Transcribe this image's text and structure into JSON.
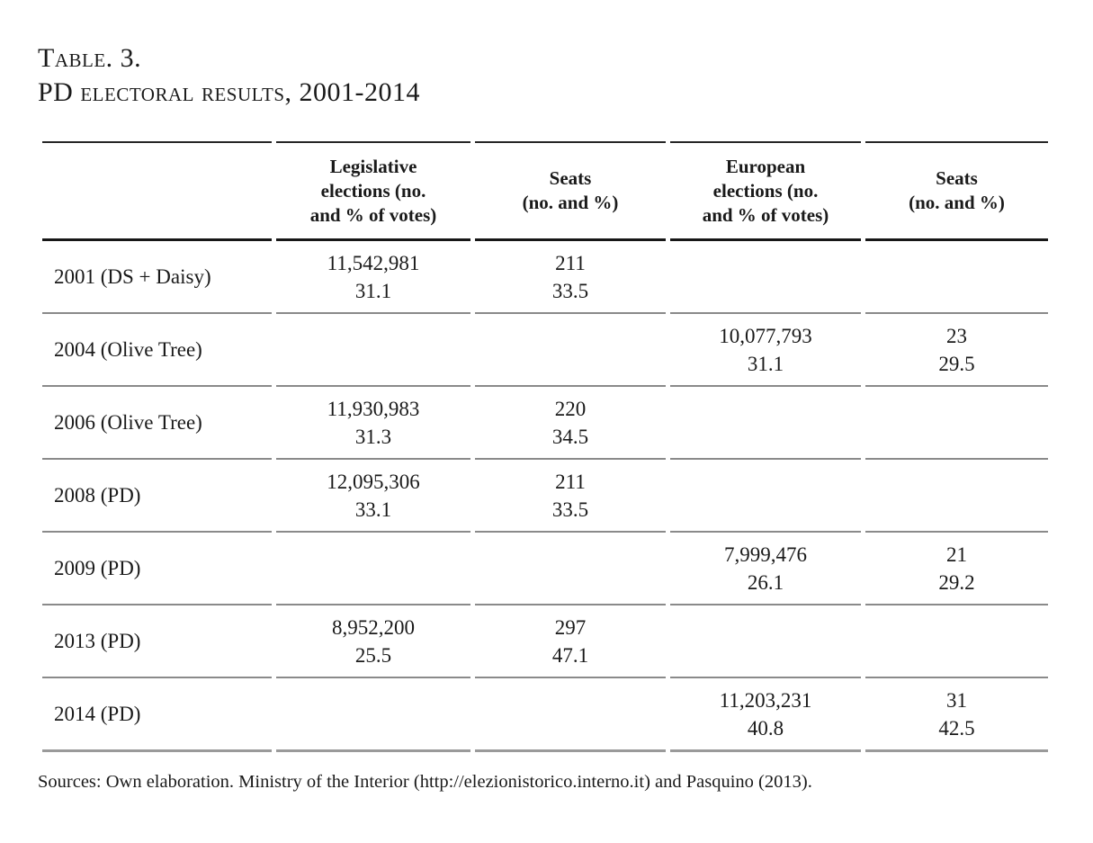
{
  "title": {
    "line1": "Table. 3.",
    "line2": "PD electoral results, 2001-2014"
  },
  "colors": {
    "background": "#ffffff",
    "text": "#1a1a1a",
    "header_rule": "#171717",
    "row_rule_gray": "#8a8a8a"
  },
  "table": {
    "columns": [
      {
        "lines": [
          "Legislative",
          "elections (no.",
          "and % of votes)"
        ]
      },
      {
        "lines": [
          "Seats",
          "(no. and %)"
        ]
      },
      {
        "lines": [
          "European",
          "elections (no.",
          "and % of votes)"
        ]
      },
      {
        "lines": [
          "Seats",
          "(no. and %)"
        ]
      }
    ],
    "rows": [
      {
        "label": "2001 (DS + Daisy)",
        "leg": {
          "votes": "11,542,981",
          "pct": "31.1"
        },
        "leg_seats": {
          "num": "211",
          "pct": "33.5"
        },
        "eu": {
          "votes": "",
          "pct": ""
        },
        "eu_seats": {
          "num": "",
          "pct": ""
        }
      },
      {
        "label": "2004 (Olive Tree)",
        "leg": {
          "votes": "",
          "pct": ""
        },
        "leg_seats": {
          "num": "",
          "pct": ""
        },
        "eu": {
          "votes": "10,077,793",
          "pct": "31.1"
        },
        "eu_seats": {
          "num": "23",
          "pct": "29.5"
        }
      },
      {
        "label": "2006 (Olive Tree)",
        "leg": {
          "votes": "11,930,983",
          "pct": "31.3"
        },
        "leg_seats": {
          "num": "220",
          "pct": "34.5"
        },
        "eu": {
          "votes": "",
          "pct": ""
        },
        "eu_seats": {
          "num": "",
          "pct": ""
        }
      },
      {
        "label": "2008 (PD)",
        "leg": {
          "votes": "12,095,306",
          "pct": "33.1"
        },
        "leg_seats": {
          "num": "211",
          "pct": "33.5"
        },
        "eu": {
          "votes": "",
          "pct": ""
        },
        "eu_seats": {
          "num": "",
          "pct": ""
        }
      },
      {
        "label": "2009 (PD)",
        "leg": {
          "votes": "",
          "pct": ""
        },
        "leg_seats": {
          "num": "",
          "pct": ""
        },
        "eu": {
          "votes": "7,999,476",
          "pct": "26.1"
        },
        "eu_seats": {
          "num": "21",
          "pct": "29.2"
        }
      },
      {
        "label": "2013 (PD)",
        "leg": {
          "votes": "8,952,200",
          "pct": "25.5"
        },
        "leg_seats": {
          "num": "297",
          "pct": "47.1"
        },
        "eu": {
          "votes": "",
          "pct": ""
        },
        "eu_seats": {
          "num": "",
          "pct": ""
        }
      },
      {
        "label": "2014 (PD)",
        "leg": {
          "votes": "",
          "pct": ""
        },
        "leg_seats": {
          "num": "",
          "pct": ""
        },
        "eu": {
          "votes": "11,203,231",
          "pct": "40.8"
        },
        "eu_seats": {
          "num": "31",
          "pct": "42.5"
        }
      }
    ]
  },
  "sources": "Sources: Own elaboration. Ministry of the Interior (http://elezionistorico.interno.it) and Pasquino (2013)."
}
